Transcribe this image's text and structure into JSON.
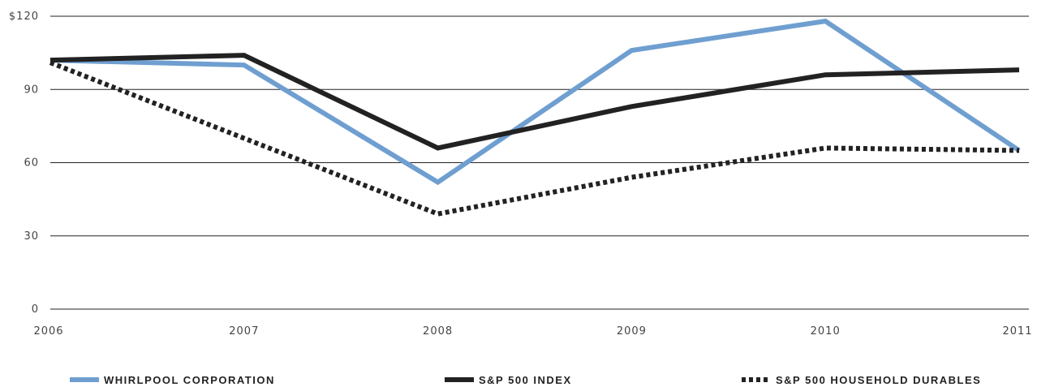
{
  "chart_data": {
    "type": "line",
    "x": [
      "2006",
      "2007",
      "2008",
      "2009",
      "2010",
      "2011"
    ],
    "y_ticks": [
      "$120",
      "90",
      "60",
      "30",
      "0"
    ],
    "y_tick_values": [
      120,
      90,
      60,
      30,
      0
    ],
    "ylim": [
      0,
      120
    ],
    "grid": "horizontal",
    "legend_position": "bottom",
    "series": [
      {
        "name": "WHIRLPOOL CORPORATION",
        "values": [
          102,
          100,
          52,
          106,
          118,
          65
        ],
        "color": "#6f9fd0",
        "style": "solid"
      },
      {
        "name": "S&P 500 INDEX",
        "values": [
          102,
          104,
          66,
          83,
          96,
          98
        ],
        "color": "#222222",
        "style": "solid"
      },
      {
        "name": "S&P 500 HOUSEHOLD DURABLES",
        "values": [
          101,
          70,
          39,
          54,
          66,
          65
        ],
        "color": "#222222",
        "style": "dotted"
      }
    ]
  }
}
